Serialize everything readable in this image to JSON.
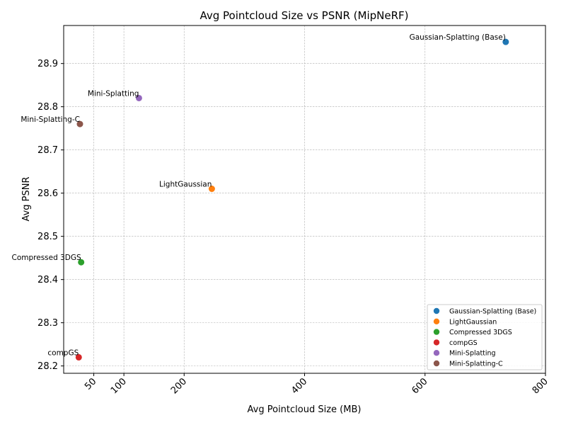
{
  "chart_data": {
    "type": "scatter",
    "title": "Avg Pointcloud Size vs PSNR (MipNeRF)",
    "xlabel": "Avg Pointcloud Size (MB)",
    "ylabel": "Avg PSNR",
    "xlim": [
      0,
      800
    ],
    "ylim": [
      28.183,
      28.988
    ],
    "x_ticks": [
      50,
      100,
      200,
      400,
      600,
      800
    ],
    "y_ticks": [
      28.2,
      28.3,
      28.4,
      28.5,
      28.6,
      28.7,
      28.8,
      28.9
    ],
    "grid": true,
    "legend_position": "bottom-right",
    "series": [
      {
        "name": "Gaussian-Splatting (Base)",
        "color": "#1f77b4",
        "x": 734,
        "y": 28.95
      },
      {
        "name": "LightGaussian",
        "color": "#ff7f0e",
        "x": 246,
        "y": 28.61
      },
      {
        "name": "Compressed 3DGS",
        "color": "#2ca02c",
        "x": 29,
        "y": 28.44
      },
      {
        "name": "compGS",
        "color": "#d62728",
        "x": 25,
        "y": 28.22
      },
      {
        "name": "Mini-Splatting",
        "color": "#9467bd",
        "x": 125,
        "y": 28.82
      },
      {
        "name": "Mini-Splatting-C",
        "color": "#8c564b",
        "x": 27,
        "y": 28.76
      }
    ]
  }
}
